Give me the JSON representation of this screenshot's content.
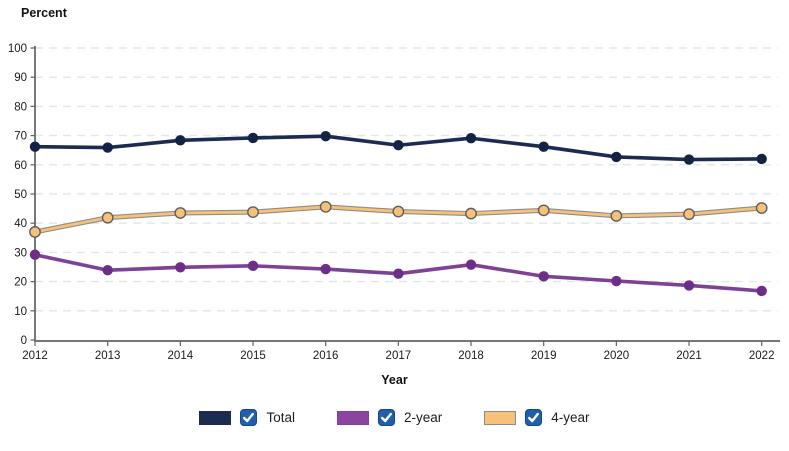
{
  "chart_data": {
    "type": "line",
    "title": "",
    "ylabel": "Percent",
    "xlabel": "Year",
    "x": [
      "2012",
      "2013",
      "2014",
      "2015",
      "2016",
      "2017",
      "2018",
      "2019",
      "2020",
      "2021",
      "2022"
    ],
    "ylim": [
      0,
      100
    ],
    "ytick_step": 10,
    "y_tick_labels": [
      "100",
      "90",
      "80",
      "70",
      "60",
      "50",
      "40",
      "30",
      "20",
      "10",
      "0"
    ],
    "grid": "light dashed horizontal gridlines every 10 percent",
    "legend_position": "bottom-center",
    "series": [
      {
        "name": "Total",
        "line_color": "#1b2b52",
        "dot_color": "#142343",
        "values": [
          66.2,
          65.9,
          68.4,
          69.2,
          69.8,
          66.7,
          69.1,
          66.2,
          62.7,
          61.8,
          62.0
        ]
      },
      {
        "name": "2-year",
        "line_color": "#7d4195",
        "dot_color": "#6c2e86",
        "values": [
          29.2,
          23.9,
          24.9,
          25.4,
          24.3,
          22.7,
          25.8,
          21.8,
          20.2,
          18.7,
          16.8
        ]
      },
      {
        "name": "4-year",
        "line_color": "#f6c27a",
        "dot_color": "#f6c27a",
        "dot_stroke": "#5f5f5f",
        "line_outline": "#8c8c8c",
        "values": [
          37.0,
          41.9,
          43.5,
          43.8,
          45.6,
          44.0,
          43.3,
          44.4,
          42.5,
          43.1,
          45.2
        ]
      }
    ],
    "colors": {
      "gridline": "#dfe7ed",
      "axis": "#5d6268",
      "tick_text": "#1a1a1a"
    }
  },
  "legend": {
    "checkbox_color": "#1f5fad",
    "items": [
      {
        "label": "Total",
        "swatch_color": "#1b2b52",
        "swatch_border": "#1b2b52",
        "checked": true
      },
      {
        "label": "2-year",
        "swatch_color": "#8b44a1",
        "swatch_border": "#7d4195",
        "checked": true
      },
      {
        "label": "4-year",
        "swatch_color": "#f6c27a",
        "swatch_border": "#8c8c8c",
        "checked": true
      }
    ]
  }
}
